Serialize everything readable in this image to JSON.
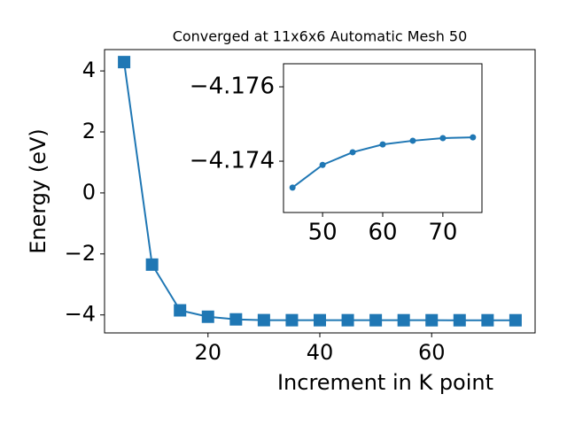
{
  "chart_data": [
    {
      "type": "line",
      "title": "Converged at 11x6x6 Automatic Mesh 50",
      "xlabel": "Increment in K point",
      "ylabel": "Energy (eV)",
      "marker": "square",
      "x": [
        5,
        10,
        15,
        20,
        25,
        30,
        35,
        40,
        45,
        50,
        55,
        60,
        65,
        70,
        75
      ],
      "series": [
        {
          "color": "#1f77b4",
          "values": [
            4.29,
            -2.35,
            -3.85,
            -4.06,
            -4.146,
            -4.171,
            -4.1728,
            -4.1731,
            -4.17329,
            -4.1739,
            -4.17424,
            -4.17445,
            -4.17455,
            -4.17462,
            -4.17464
          ]
        }
      ],
      "xlim": [
        1.5,
        78.5
      ],
      "ylim": [
        -4.59,
        4.7
      ],
      "xticks": [
        20,
        40,
        60
      ],
      "yticks": [
        {
          "value": -4,
          "label": "−4"
        },
        {
          "value": -2,
          "label": "−2"
        },
        0,
        2,
        4
      ]
    },
    {
      "type": "line",
      "marker": "circle",
      "x": [
        45,
        50,
        55,
        60,
        65,
        70,
        75
      ],
      "series": [
        {
          "color": "#1f77b4",
          "values": [
            -4.17329,
            -4.1739,
            -4.17424,
            -4.17445,
            -4.17455,
            -4.17462,
            -4.17464
          ]
        }
      ],
      "xlim": [
        43.5,
        76.5
      ],
      "ylim": [
        -4.17262,
        -4.17662
      ],
      "xticks": [
        50,
        60,
        70
      ],
      "yticks": [
        {
          "value": -4.176,
          "label": "−4.176"
        },
        {
          "value": -4.174,
          "label": "−4.174"
        }
      ]
    }
  ]
}
